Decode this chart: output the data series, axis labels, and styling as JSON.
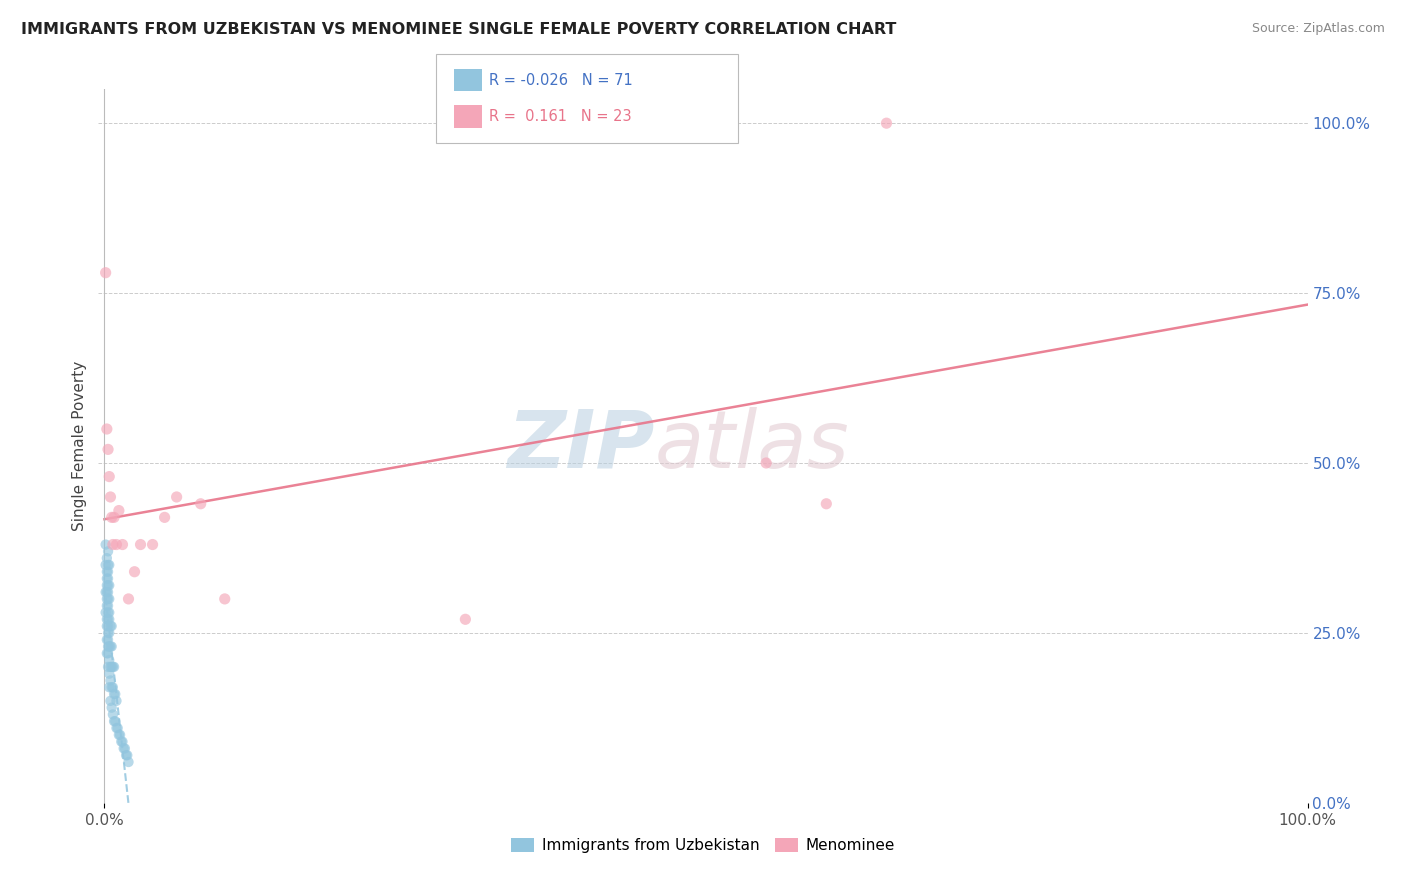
{
  "title": "IMMIGRANTS FROM UZBEKISTAN VS MENOMINEE SINGLE FEMALE POVERTY CORRELATION CHART",
  "source": "Source: ZipAtlas.com",
  "ylabel": "Single Female Poverty",
  "legend_label1": "Immigrants from Uzbekistan",
  "legend_label2": "Menominee",
  "r1": "-0.026",
  "n1": "71",
  "r2": "0.161",
  "n2": "23",
  "blue_color": "#92c5de",
  "pink_color": "#f4a6b8",
  "blue_line_color": "#92c5de",
  "pink_line_color": "#e8748a",
  "blue_x": [
    0.001,
    0.001,
    0.001,
    0.001,
    0.002,
    0.002,
    0.002,
    0.002,
    0.002,
    0.002,
    0.002,
    0.002,
    0.002,
    0.002,
    0.002,
    0.003,
    0.003,
    0.003,
    0.003,
    0.003,
    0.003,
    0.003,
    0.003,
    0.003,
    0.003,
    0.003,
    0.003,
    0.003,
    0.003,
    0.003,
    0.003,
    0.004,
    0.004,
    0.004,
    0.004,
    0.004,
    0.004,
    0.004,
    0.004,
    0.004,
    0.004,
    0.005,
    0.005,
    0.005,
    0.005,
    0.005,
    0.006,
    0.006,
    0.006,
    0.006,
    0.006,
    0.007,
    0.007,
    0.007,
    0.008,
    0.008,
    0.008,
    0.009,
    0.009,
    0.01,
    0.01,
    0.011,
    0.012,
    0.013,
    0.014,
    0.015,
    0.016,
    0.017,
    0.018,
    0.019,
    0.02
  ],
  "blue_y": [
    0.28,
    0.31,
    0.35,
    0.38,
    0.22,
    0.24,
    0.26,
    0.27,
    0.29,
    0.3,
    0.31,
    0.32,
    0.33,
    0.34,
    0.36,
    0.2,
    0.22,
    0.23,
    0.24,
    0.25,
    0.26,
    0.27,
    0.28,
    0.29,
    0.3,
    0.31,
    0.32,
    0.33,
    0.34,
    0.35,
    0.37,
    0.17,
    0.19,
    0.21,
    0.23,
    0.25,
    0.27,
    0.28,
    0.3,
    0.32,
    0.35,
    0.15,
    0.18,
    0.2,
    0.23,
    0.26,
    0.14,
    0.17,
    0.2,
    0.23,
    0.26,
    0.13,
    0.17,
    0.2,
    0.12,
    0.16,
    0.2,
    0.12,
    0.16,
    0.11,
    0.15,
    0.11,
    0.1,
    0.1,
    0.09,
    0.09,
    0.08,
    0.08,
    0.07,
    0.07,
    0.06
  ],
  "pink_x": [
    0.001,
    0.002,
    0.003,
    0.004,
    0.005,
    0.006,
    0.007,
    0.008,
    0.01,
    0.012,
    0.015,
    0.02,
    0.025,
    0.03,
    0.04,
    0.05,
    0.06,
    0.08,
    0.1,
    0.3,
    0.55,
    0.6,
    0.65
  ],
  "pink_y": [
    0.78,
    0.55,
    0.52,
    0.48,
    0.45,
    0.42,
    0.38,
    0.42,
    0.38,
    0.43,
    0.38,
    0.3,
    0.34,
    0.38,
    0.38,
    0.42,
    0.45,
    0.44,
    0.3,
    0.27,
    0.5,
    0.44,
    1.0
  ]
}
